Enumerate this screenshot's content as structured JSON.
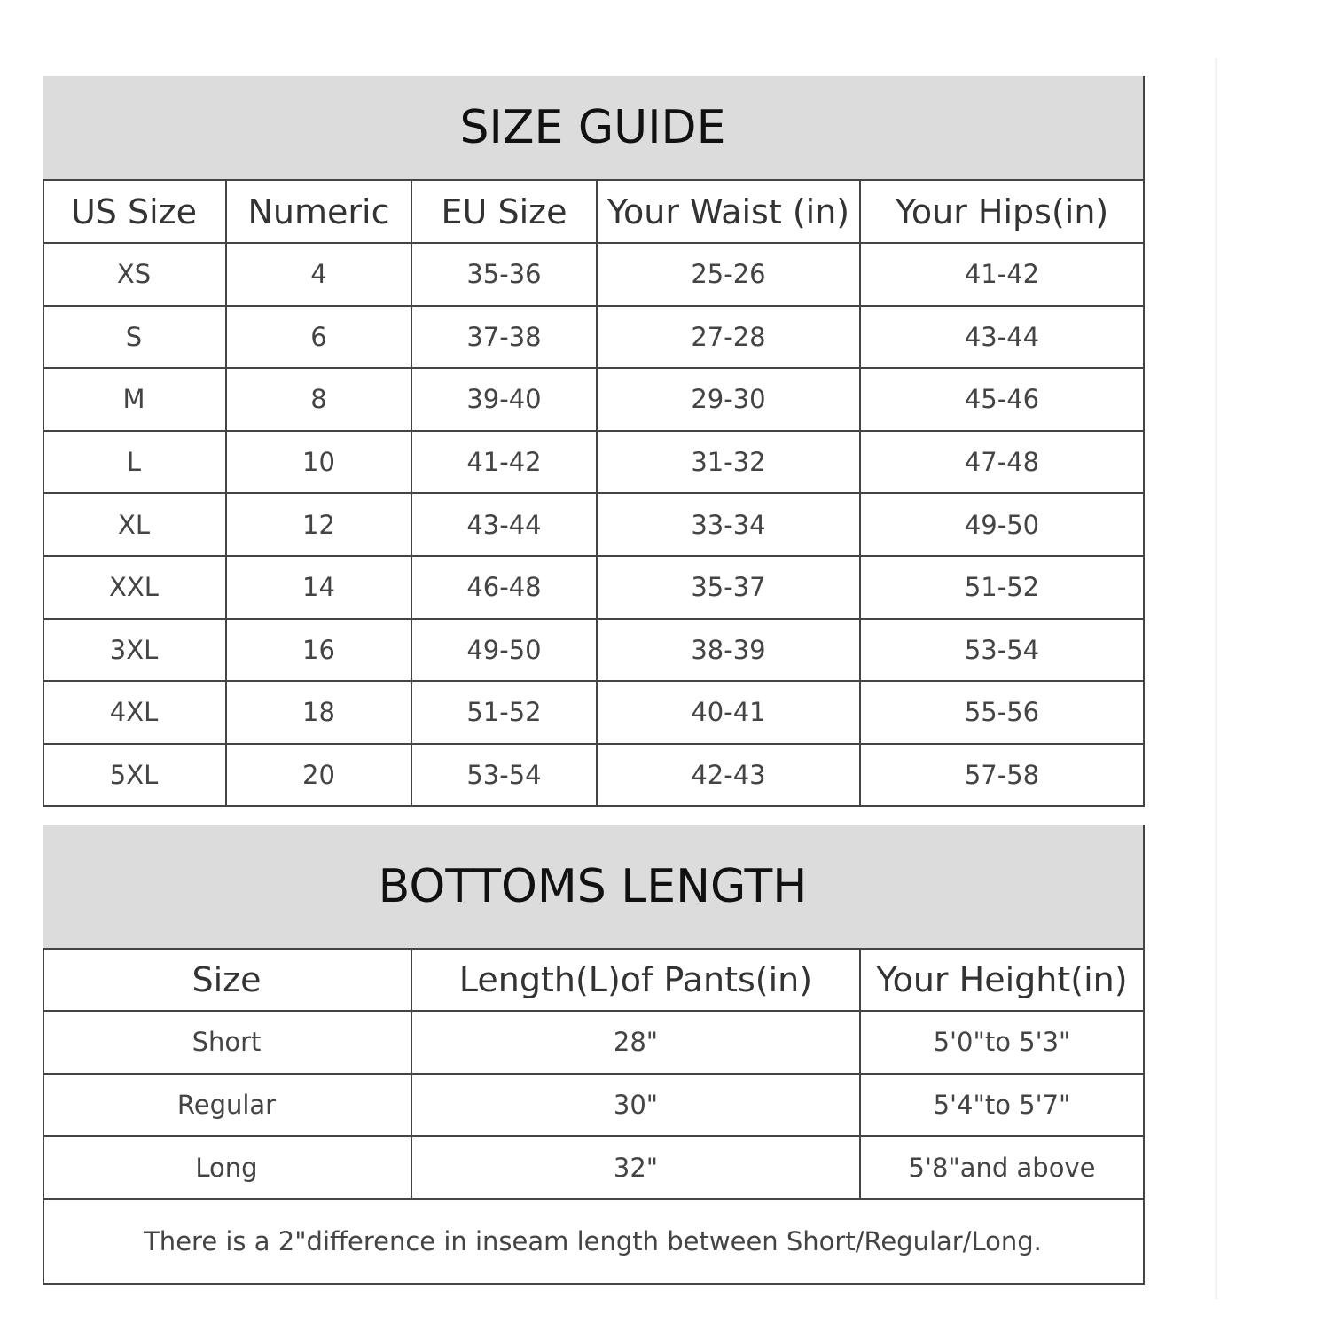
{
  "size_guide": {
    "title": "SIZE GUIDE",
    "headers": [
      "US Size",
      "Numeric",
      "EU Size",
      "Your Waist (in)",
      "Your Hips(in)"
    ],
    "rows": [
      [
        "XS",
        "4",
        "35-36",
        "25-26",
        "41-42"
      ],
      [
        "S",
        "6",
        "37-38",
        "27-28",
        "43-44"
      ],
      [
        "M",
        "8",
        "39-40",
        "29-30",
        "45-46"
      ],
      [
        "L",
        "10",
        "41-42",
        "31-32",
        "47-48"
      ],
      [
        "XL",
        "12",
        "43-44",
        "33-34",
        "49-50"
      ],
      [
        "XXL",
        "14",
        "46-48",
        "35-37",
        "51-52"
      ],
      [
        "3XL",
        "16",
        "49-50",
        "38-39",
        "53-54"
      ],
      [
        "4XL",
        "18",
        "51-52",
        "40-41",
        "55-56"
      ],
      [
        "5XL",
        "20",
        "53-54",
        "42-43",
        "57-58"
      ]
    ]
  },
  "bottoms_length": {
    "title": "BOTTOMS LENGTH",
    "headers": [
      "Size",
      "Length(L)of Pants(in)",
      "Your Height(in)"
    ],
    "rows": [
      [
        "Short",
        "28\"",
        "5'0\"to 5'3\""
      ],
      [
        "Regular",
        "30\"",
        "5'4\"to 5'7\""
      ],
      [
        "Long",
        "32\"",
        "5'8\"and above"
      ]
    ],
    "note": "There is a 2\"difference in inseam length between Short/Regular/Long."
  }
}
